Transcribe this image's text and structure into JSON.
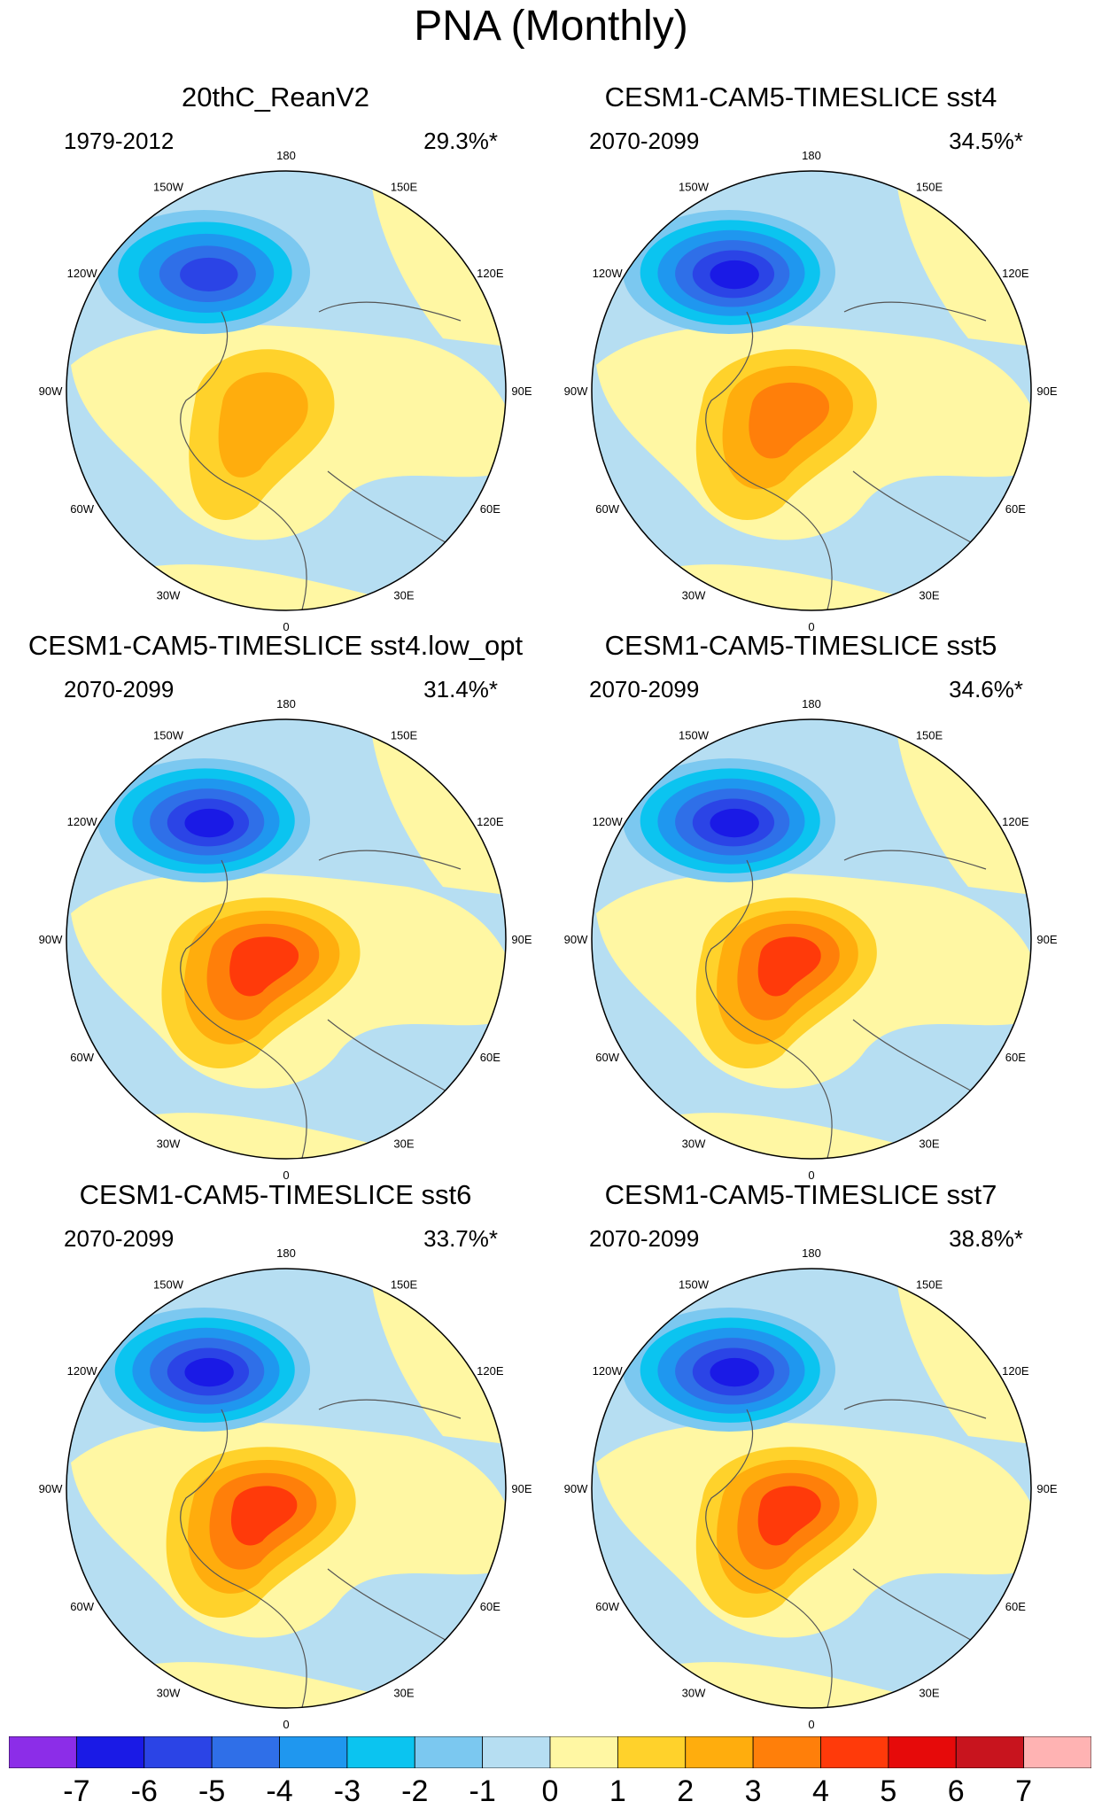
{
  "title": "PNA (Monthly)",
  "panels": [
    {
      "title": "20thC_ReanV2",
      "period": "1979-2012",
      "pct": "29.3%*",
      "variant": 0
    },
    {
      "title": "CESM1-CAM5-TIMESLICE sst4",
      "period": "2070-2099",
      "pct": "34.5%*",
      "variant": 1
    },
    {
      "title": "CESM1-CAM5-TIMESLICE sst4.low_opt",
      "period": "2070-2099",
      "pct": "31.4%*",
      "variant": 2
    },
    {
      "title": "CESM1-CAM5-TIMESLICE sst5",
      "period": "2070-2099",
      "pct": "34.6%*",
      "variant": 3
    },
    {
      "title": "CESM1-CAM5-TIMESLICE sst6",
      "period": "2070-2099",
      "pct": "33.7%*",
      "variant": 4
    },
    {
      "title": "CESM1-CAM5-TIMESLICE sst7",
      "period": "2070-2099",
      "pct": "38.8%*",
      "variant": 5
    }
  ],
  "lon_labels": [
    "180",
    "150E",
    "120E",
    "90E",
    "60E",
    "30E",
    "0",
    "30W",
    "60W",
    "90W",
    "120W",
    "150W"
  ],
  "colorbar": {
    "colors": [
      "#8c2de8",
      "#1a1ae6",
      "#2b44e6",
      "#2f6fe8",
      "#1f97ef",
      "#0bc4f0",
      "#7bc8f0",
      "#b6def2",
      "#fff7a3",
      "#ffd22b",
      "#ffad0d",
      "#ff7f0a",
      "#ff3a0a",
      "#e60a0a",
      "#c8141e",
      "#ffb3b3"
    ],
    "labels": [
      "-7",
      "-6",
      "-5",
      "-4",
      "-3",
      "-2",
      "-1",
      "0",
      "1",
      "2",
      "3",
      "4",
      "5",
      "6",
      "7"
    ]
  }
}
